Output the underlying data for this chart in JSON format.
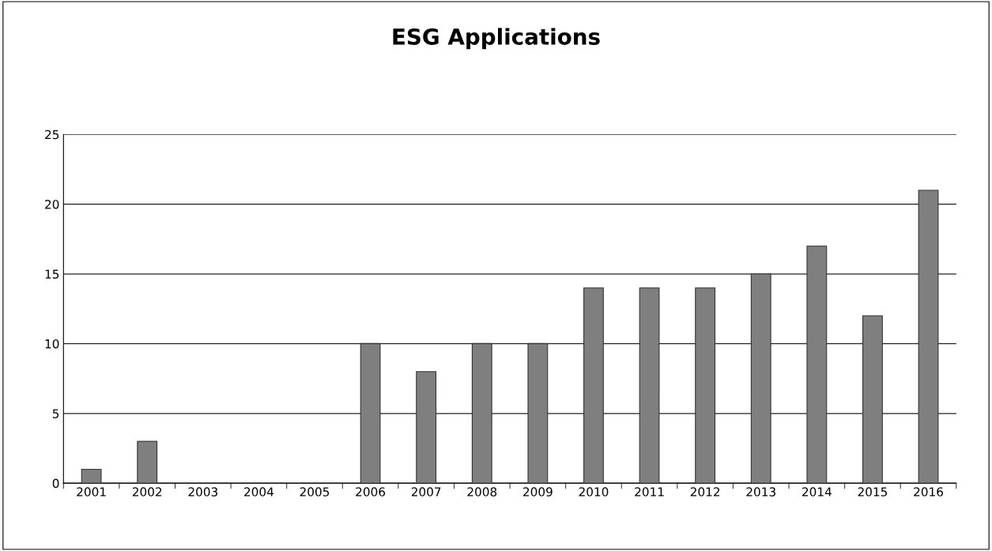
{
  "chart_data": {
    "type": "bar",
    "title": "ESG Applications",
    "categories": [
      "2001",
      "2002",
      "2003",
      "2004",
      "2005",
      "2006",
      "2007",
      "2008",
      "2009",
      "2010",
      "2011",
      "2012",
      "2013",
      "2014",
      "2015",
      "2016"
    ],
    "values": [
      1,
      3,
      0,
      0,
      0,
      10,
      8,
      10,
      10,
      14,
      14,
      14,
      15,
      17,
      12,
      21
    ],
    "color": "#7f7f7f",
    "ylim": [
      0,
      25
    ],
    "yticks": [
      0,
      5,
      10,
      15,
      20,
      25
    ],
    "grid": "y"
  }
}
